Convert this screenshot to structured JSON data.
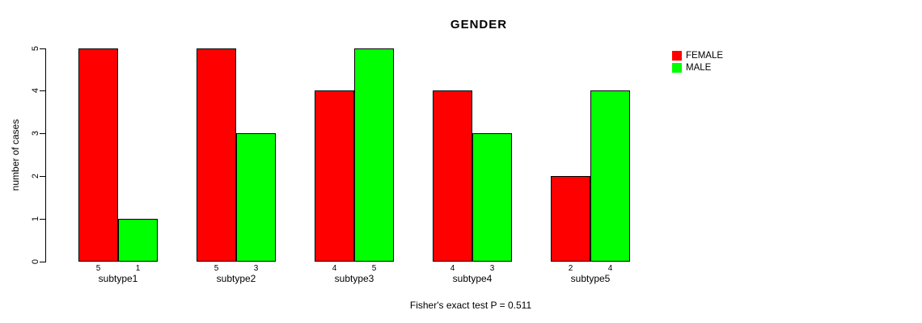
{
  "chart_data": {
    "type": "bar",
    "title": "GENDER",
    "xlabel": "",
    "ylabel": "number of cases",
    "annotation": "Fisher's exact test P = 0.511",
    "categories": [
      "subtype1",
      "subtype2",
      "subtype3",
      "subtype4",
      "subtype5"
    ],
    "series": [
      {
        "name": "FEMALE",
        "color": "#ff0000",
        "values": [
          5,
          5,
          4,
          4,
          2
        ]
      },
      {
        "name": "MALE",
        "color": "#00ff00",
        "values": [
          1,
          3,
          5,
          3,
          4
        ]
      }
    ],
    "bar_value_labels": [
      [
        "5",
        "1"
      ],
      [
        "5",
        "3"
      ],
      [
        "4",
        "5"
      ],
      [
        "4",
        "3"
      ],
      [
        "2",
        "4"
      ]
    ],
    "ylim": [
      0,
      5
    ],
    "yticks": [
      "0",
      "1",
      "2",
      "3",
      "4",
      "5"
    ],
    "grid": false,
    "legend_position": "top-right",
    "bar_border_color": "#000000",
    "background_color": "#ffffff"
  }
}
